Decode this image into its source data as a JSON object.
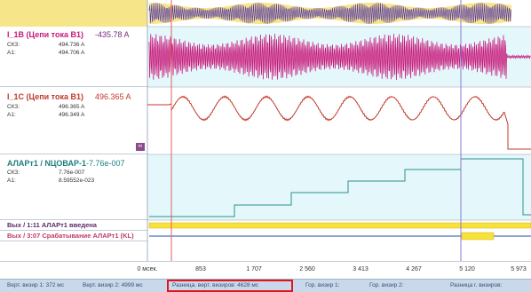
{
  "channels": [
    {
      "title": "I_1B (Цепи тока В1)",
      "value": "-435.78 A",
      "rows": [
        {
          "label": "СКЗ:",
          "value": "494.736 A"
        },
        {
          "label": "А1:",
          "value": "494.706 A"
        }
      ]
    },
    {
      "title": "I_1C (Цепи тока В1)",
      "value": "496.365 A",
      "rows": [
        {
          "label": "СКЗ:",
          "value": "496.365 A"
        },
        {
          "label": "А1:",
          "value": "496.349 A"
        }
      ]
    },
    {
      "title": "АЛАРт1 / NЦОВАР-1",
      "value": "-7.76e-007",
      "rows": [
        {
          "label": "СКЗ:",
          "value": "7.76e-007"
        },
        {
          "label": "А1:",
          "value": "8.59552e-023"
        }
      ]
    }
  ],
  "discrete": [
    {
      "label": "Вых / 1:11 АЛАРт1 введена"
    },
    {
      "label": "Вых / 3:07 Срабатывание АЛАРт1 (KL)"
    }
  ],
  "badge": "m",
  "axis_ticks": [
    "0 мсек.",
    "853",
    "1 707",
    "2 560",
    "3 413",
    "4 267",
    "5 120",
    "5 973"
  ],
  "status": {
    "vert1": "Верт. визир 1: 372 мс",
    "vert2": "Верт. визир 2: 4999 мс",
    "diff": "Разница. верт. визиров: 4628 мс",
    "hor1": "Гор. визир 1:",
    "hor2": "Гор. визир 2:",
    "hordiff": "Разница г. визиров:"
  },
  "colors": {
    "trace_b": "#c8187a",
    "trace_c": "#c0392b",
    "trace_d": "#2b8f8a",
    "cursor1": "#e06060",
    "cursor2": "#8c7ad0",
    "yellow_band": "#f7e58a",
    "plot_bg": "#e4f8fc",
    "highlight": "#e0161c"
  }
}
